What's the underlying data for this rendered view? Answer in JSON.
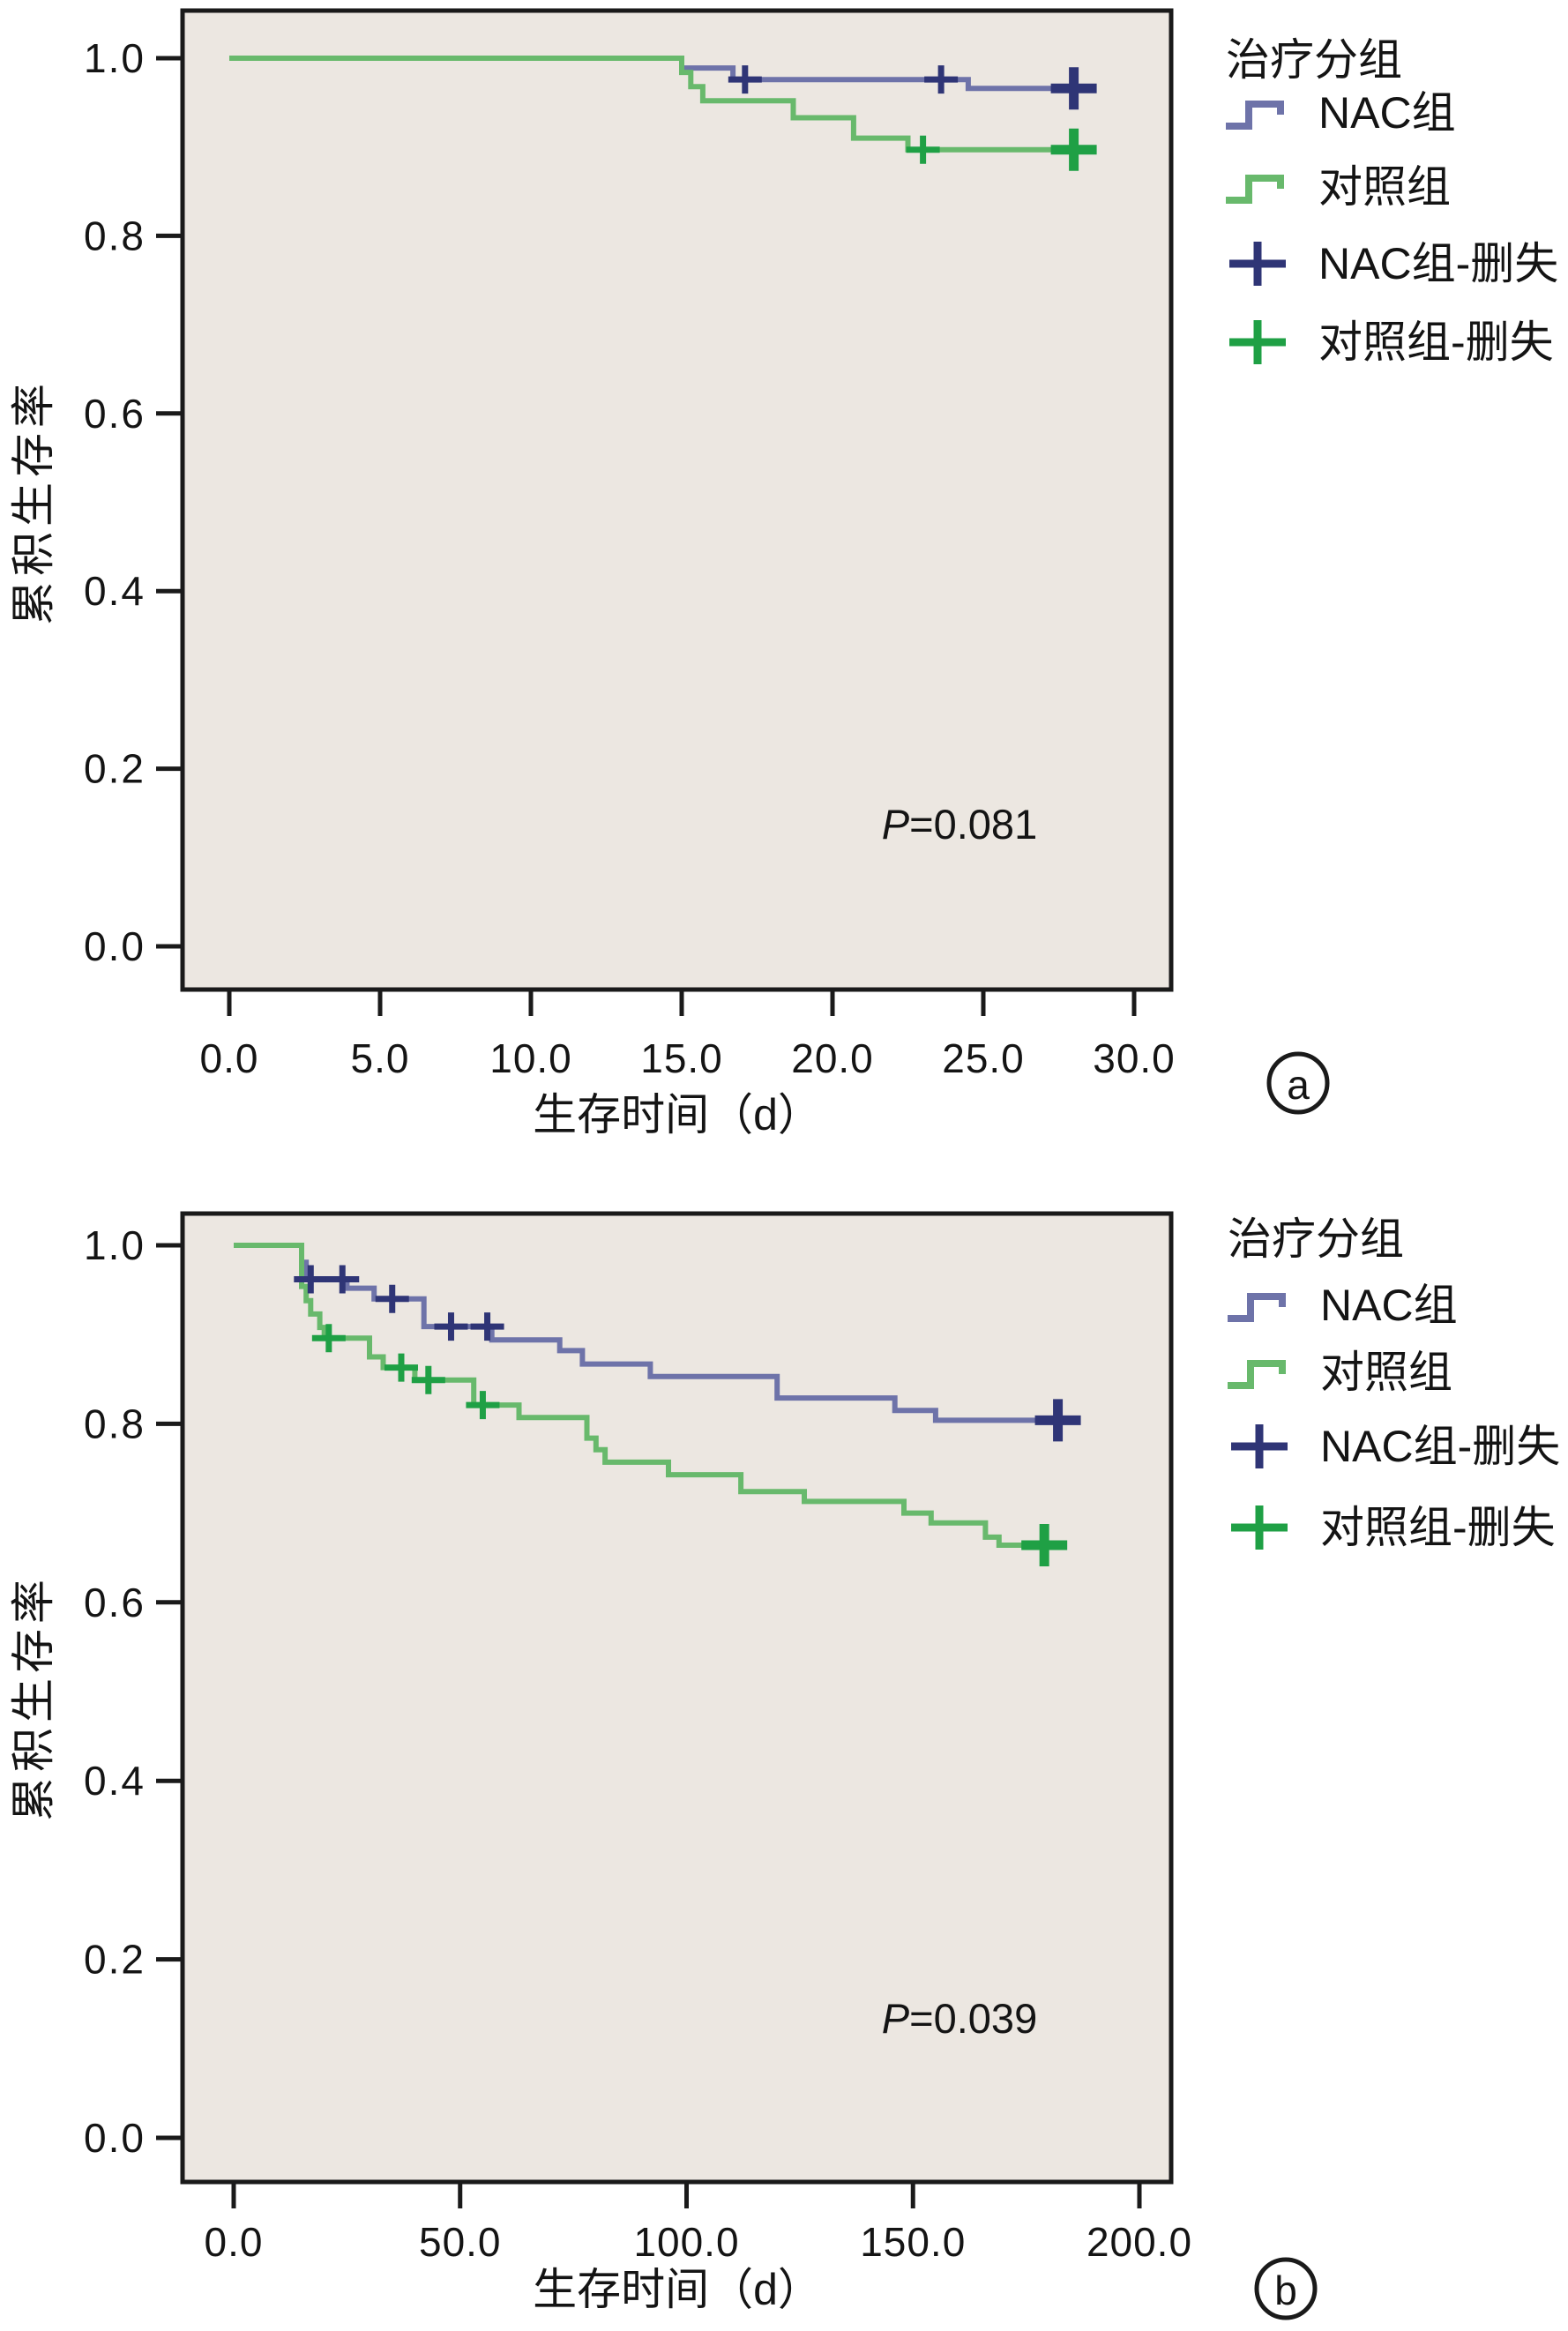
{
  "colors": {
    "plot_background": "#ece7e1",
    "frame": "#1a1a1a",
    "nac_line": "#6e73a9",
    "nac_censor": "#2f3576",
    "control_line": "#68b96c",
    "control_censor": "#1fa045"
  },
  "chart_data": [
    {
      "id": "a",
      "type": "line",
      "chart_kind": "kaplan-meier-step",
      "panel_label": "a",
      "xlabel": "生存时间（d）",
      "ylabel": "累积生存率",
      "xlim": [
        0,
        30
      ],
      "ylim": [
        0.0,
        1.0
      ],
      "xticks": [
        0,
        5,
        10,
        15,
        20,
        25,
        30
      ],
      "xtick_labels": [
        "0.0",
        "5.0",
        "10.0",
        "15.0",
        "20.0",
        "25.0",
        "30.0"
      ],
      "yticks": [
        1.0,
        0.8,
        0.6,
        0.4,
        0.2,
        0.0
      ],
      "ytick_labels": [
        "1.0",
        "0.8",
        "0.6",
        "0.4",
        "0.2",
        "0.0"
      ],
      "grid": false,
      "legend_position": "right",
      "p_label": {
        "symbol": "P",
        "rest": "=0.081"
      },
      "legend": {
        "title": "治疗分组",
        "items": [
          {
            "label": "NAC组",
            "marker": "step",
            "color": "#6e73a9"
          },
          {
            "label": "对照组",
            "marker": "step",
            "color": "#68b96c"
          },
          {
            "label": "NAC组-删失",
            "marker": "censor",
            "color": "#2f3576"
          },
          {
            "label": "对照组-删失",
            "marker": "censor",
            "color": "#1fa045"
          }
        ]
      },
      "series": [
        {
          "name": "NAC组",
          "color": "#6e73a9",
          "censor_color": "#2f3576",
          "steps": [
            [
              0,
              1.0
            ],
            [
              15,
              1.0
            ],
            [
              15,
              0.989
            ],
            [
              16.7,
              0.989
            ],
            [
              16.7,
              0.976
            ],
            [
              24.5,
              0.976
            ],
            [
              24.5,
              0.966
            ],
            [
              28,
              0.966
            ]
          ],
          "censors": [
            [
              17.1,
              0.976
            ],
            [
              23.6,
              0.976
            ],
            [
              28,
              0.966
            ]
          ]
        },
        {
          "name": "对照组",
          "color": "#68b96c",
          "censor_color": "#1fa045",
          "steps": [
            [
              0,
              1.0
            ],
            [
              15,
              1.0
            ],
            [
              15,
              0.984
            ],
            [
              15.3,
              0.984
            ],
            [
              15.3,
              0.968
            ],
            [
              15.7,
              0.968
            ],
            [
              15.7,
              0.952
            ],
            [
              18.7,
              0.952
            ],
            [
              18.7,
              0.933
            ],
            [
              20.7,
              0.933
            ],
            [
              20.7,
              0.91
            ],
            [
              22.5,
              0.91
            ],
            [
              22.5,
              0.897
            ],
            [
              28,
              0.897
            ]
          ],
          "censors": [
            [
              23,
              0.897
            ],
            [
              28,
              0.897
            ]
          ]
        }
      ]
    },
    {
      "id": "b",
      "type": "line",
      "chart_kind": "kaplan-meier-step",
      "panel_label": "b",
      "xlabel": "生存时间（d）",
      "ylabel": "累积生存率",
      "xlim": [
        0,
        200
      ],
      "ylim": [
        0.0,
        1.0
      ],
      "xticks": [
        0,
        50,
        100,
        150,
        200
      ],
      "xtick_labels": [
        "0.0",
        "50.0",
        "100.0",
        "150.0",
        "200.0"
      ],
      "yticks": [
        1.0,
        0.8,
        0.6,
        0.4,
        0.2,
        0.0
      ],
      "ytick_labels": [
        "1.0",
        "0.8",
        "0.6",
        "0.4",
        "0.2",
        "0.0"
      ],
      "grid": false,
      "legend_position": "right",
      "p_label": {
        "symbol": "P",
        "rest": "=0.039"
      },
      "legend": {
        "title": "治疗分组",
        "items": [
          {
            "label": "NAC组",
            "marker": "step",
            "color": "#6e73a9"
          },
          {
            "label": "对照组",
            "marker": "step",
            "color": "#68b96c"
          },
          {
            "label": "NAC组-删失",
            "marker": "censor",
            "color": "#2f3576"
          },
          {
            "label": "对照组-删失",
            "marker": "censor",
            "color": "#1fa045"
          }
        ]
      },
      "series": [
        {
          "name": "NAC组",
          "color": "#6e73a9",
          "censor_color": "#2f3576",
          "steps": [
            [
              0,
              1.0
            ],
            [
              15,
              1.0
            ],
            [
              15,
              0.981
            ],
            [
              16,
              0.981
            ],
            [
              16,
              0.962
            ],
            [
              25,
              0.962
            ],
            [
              25,
              0.952
            ],
            [
              31,
              0.952
            ],
            [
              31,
              0.94
            ],
            [
              42,
              0.94
            ],
            [
              42,
              0.909
            ],
            [
              57,
              0.909
            ],
            [
              57,
              0.894
            ],
            [
              72,
              0.894
            ],
            [
              72,
              0.882
            ],
            [
              77,
              0.882
            ],
            [
              77,
              0.867
            ],
            [
              92,
              0.867
            ],
            [
              92,
              0.853
            ],
            [
              120,
              0.853
            ],
            [
              120,
              0.829
            ],
            [
              146,
              0.829
            ],
            [
              146,
              0.815
            ],
            [
              155,
              0.815
            ],
            [
              155,
              0.804
            ],
            [
              182,
              0.804
            ]
          ],
          "censors": [
            [
              17,
              0.962
            ],
            [
              24,
              0.962
            ],
            [
              35,
              0.94
            ],
            [
              48,
              0.909
            ],
            [
              56,
              0.909
            ],
            [
              182,
              0.804
            ]
          ]
        },
        {
          "name": "对照组",
          "color": "#68b96c",
          "censor_color": "#1fa045",
          "steps": [
            [
              0,
              1.0
            ],
            [
              15,
              1.0
            ],
            [
              15,
              0.954
            ],
            [
              16,
              0.954
            ],
            [
              16,
              0.938
            ],
            [
              17,
              0.938
            ],
            [
              17,
              0.923
            ],
            [
              19,
              0.923
            ],
            [
              19,
              0.908
            ],
            [
              20,
              0.908
            ],
            [
              20,
              0.896
            ],
            [
              30,
              0.896
            ],
            [
              30,
              0.875
            ],
            [
              33,
              0.875
            ],
            [
              33,
              0.863
            ],
            [
              40,
              0.863
            ],
            [
              40,
              0.849
            ],
            [
              53,
              0.849
            ],
            [
              53,
              0.821
            ],
            [
              63,
              0.821
            ],
            [
              63,
              0.807
            ],
            [
              78,
              0.807
            ],
            [
              78,
              0.784
            ],
            [
              80,
              0.784
            ],
            [
              80,
              0.771
            ],
            [
              82,
              0.771
            ],
            [
              82,
              0.757
            ],
            [
              96,
              0.757
            ],
            [
              96,
              0.743
            ],
            [
              112,
              0.743
            ],
            [
              112,
              0.724
            ],
            [
              126,
              0.724
            ],
            [
              126,
              0.713
            ],
            [
              148,
              0.713
            ],
            [
              148,
              0.7
            ],
            [
              154,
              0.7
            ],
            [
              154,
              0.689
            ],
            [
              166,
              0.689
            ],
            [
              166,
              0.673
            ],
            [
              169,
              0.673
            ],
            [
              169,
              0.664
            ],
            [
              179,
              0.664
            ]
          ],
          "censors": [
            [
              21,
              0.896
            ],
            [
              37,
              0.863
            ],
            [
              43,
              0.849
            ],
            [
              55,
              0.821
            ],
            [
              179,
              0.664
            ]
          ]
        }
      ]
    }
  ]
}
